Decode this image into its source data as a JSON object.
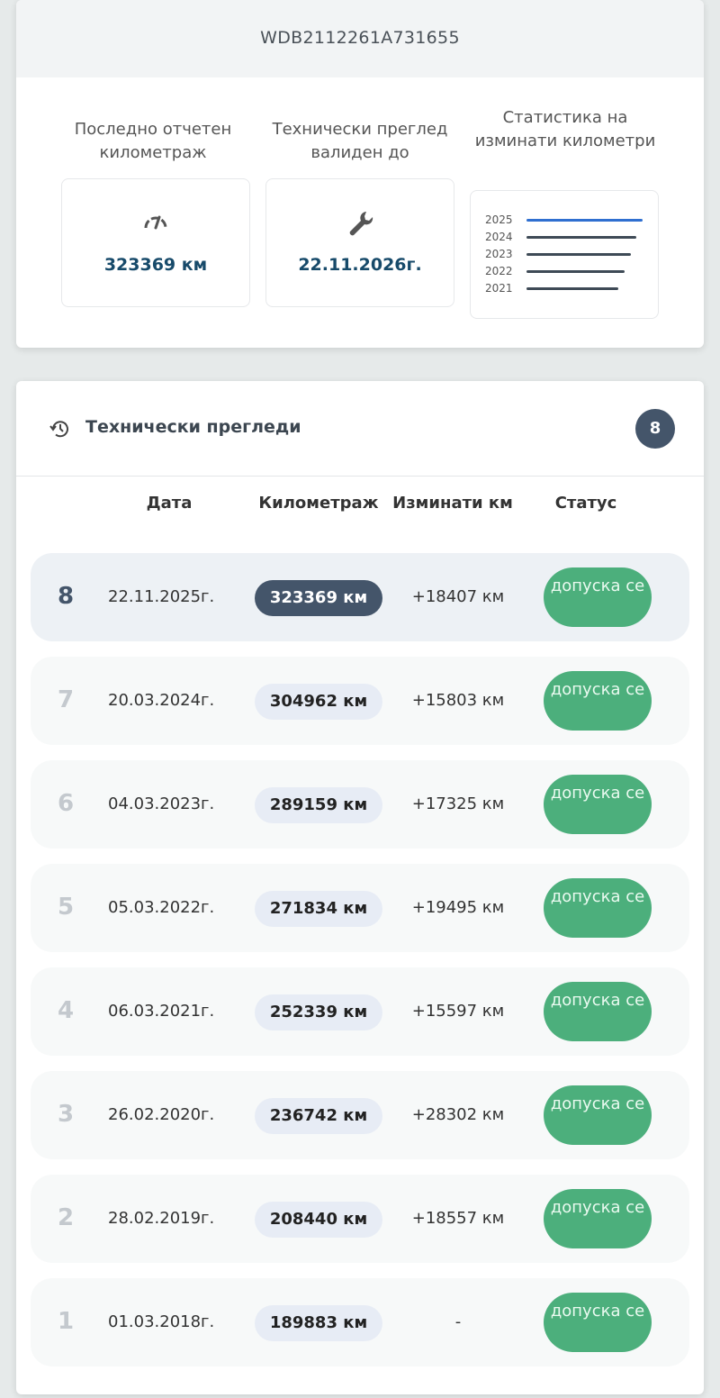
{
  "vin": "WDB2112261A731655",
  "summary": {
    "mileage": {
      "label": "Последно отчетен километраж",
      "value": "323369 км",
      "icon": "speedometer-icon"
    },
    "inspection": {
      "label": "Технически преглед валиден до",
      "value": "22.11.2026г.",
      "icon": "wrench-icon"
    },
    "stats": {
      "label": "Статистика на изминати километри",
      "years": [
        "2025",
        "2024",
        "2023",
        "2022",
        "2021"
      ],
      "accent": "#2f6fd0"
    }
  },
  "inspections": {
    "title": "Технически прегледи",
    "icon": "history-icon",
    "count": "8",
    "columns": {
      "date": "Дата",
      "mileage": "Километраж",
      "diff": "Изминати км",
      "status": "Статус"
    },
    "rows": [
      {
        "n": "8",
        "date": "22.11.2025г.",
        "km": "323369 км",
        "diff": "+18407 км",
        "status": "допуска се"
      },
      {
        "n": "7",
        "date": "20.03.2024г.",
        "km": "304962 км",
        "diff": "+15803 км",
        "status": "допуска се"
      },
      {
        "n": "6",
        "date": "04.03.2023г.",
        "km": "289159 км",
        "diff": "+17325 км",
        "status": "допуска се"
      },
      {
        "n": "5",
        "date": "05.03.2022г.",
        "km": "271834 км",
        "diff": "+19495 км",
        "status": "допуска се"
      },
      {
        "n": "4",
        "date": "06.03.2021г.",
        "km": "252339 км",
        "diff": "+15597 км",
        "status": "допуска се"
      },
      {
        "n": "3",
        "date": "26.02.2020г.",
        "km": "236742 км",
        "diff": "+28302 км",
        "status": "допуска се"
      },
      {
        "n": "2",
        "date": "28.02.2019г.",
        "km": "208440 км",
        "diff": "+18557 км",
        "status": "допуска се"
      },
      {
        "n": "1",
        "date": "01.03.2018г.",
        "km": "189883 км",
        "diff": "-",
        "status": "допуска се"
      }
    ]
  }
}
